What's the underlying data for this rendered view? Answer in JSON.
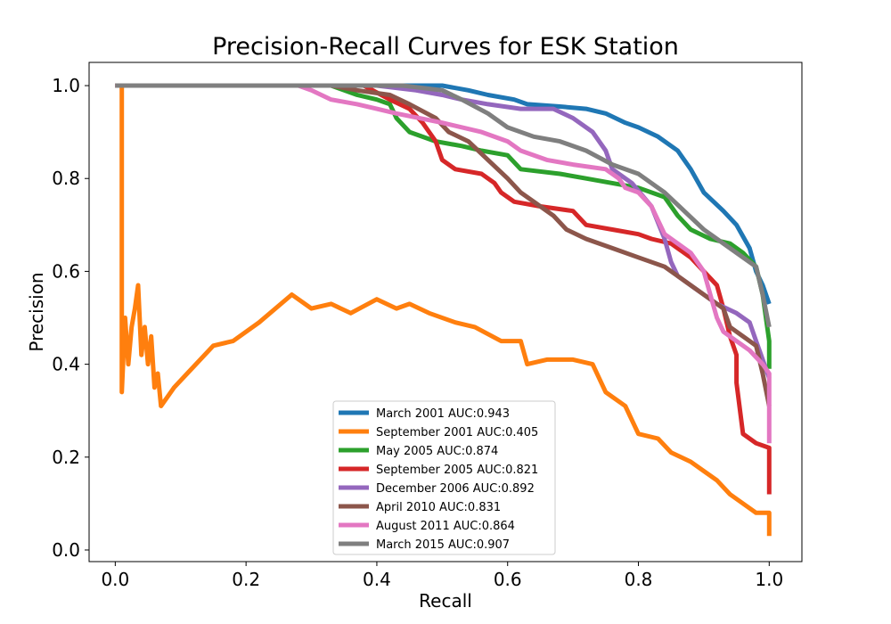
{
  "chart_data": {
    "type": "line",
    "title": "Precision-Recall Curves for ESK Station",
    "xlabel": "Recall",
    "ylabel": "Precision",
    "xlim": [
      -0.04,
      1.05
    ],
    "ylim": [
      -0.025,
      1.05
    ],
    "xticks": [
      "0.0",
      "0.2",
      "0.4",
      "0.6",
      "0.8",
      "1.0"
    ],
    "yticks": [
      "0.0",
      "0.2",
      "0.4",
      "0.6",
      "0.8",
      "1.0"
    ],
    "grid": false,
    "legend_position": "lower-center",
    "series": [
      {
        "name": "March 2001 AUC:0.943",
        "color": "#1f77b4",
        "points": [
          [
            0,
            1.0
          ],
          [
            0.5,
            1.0
          ],
          [
            0.54,
            0.99
          ],
          [
            0.57,
            0.98
          ],
          [
            0.61,
            0.97
          ],
          [
            0.63,
            0.96
          ],
          [
            0.68,
            0.955
          ],
          [
            0.72,
            0.95
          ],
          [
            0.75,
            0.94
          ],
          [
            0.78,
            0.92
          ],
          [
            0.8,
            0.91
          ],
          [
            0.83,
            0.89
          ],
          [
            0.86,
            0.86
          ],
          [
            0.88,
            0.82
          ],
          [
            0.9,
            0.77
          ],
          [
            0.93,
            0.73
          ],
          [
            0.95,
            0.7
          ],
          [
            0.97,
            0.65
          ],
          [
            0.98,
            0.6
          ],
          [
            0.99,
            0.57
          ],
          [
            1.0,
            0.53
          ]
        ]
      },
      {
        "name": "September 2001 AUC:0.405",
        "color": "#ff7f0e",
        "points": [
          [
            0,
            1.0
          ],
          [
            0.01,
            1.0
          ],
          [
            0.01,
            0.34
          ],
          [
            0.015,
            0.5
          ],
          [
            0.02,
            0.4
          ],
          [
            0.025,
            0.48
          ],
          [
            0.03,
            0.52
          ],
          [
            0.035,
            0.57
          ],
          [
            0.04,
            0.42
          ],
          [
            0.045,
            0.48
          ],
          [
            0.05,
            0.4
          ],
          [
            0.055,
            0.46
          ],
          [
            0.06,
            0.35
          ],
          [
            0.065,
            0.38
          ],
          [
            0.07,
            0.31
          ],
          [
            0.08,
            0.33
          ],
          [
            0.09,
            0.35
          ],
          [
            0.11,
            0.38
          ],
          [
            0.15,
            0.44
          ],
          [
            0.18,
            0.45
          ],
          [
            0.22,
            0.49
          ],
          [
            0.27,
            0.55
          ],
          [
            0.3,
            0.52
          ],
          [
            0.33,
            0.53
          ],
          [
            0.36,
            0.51
          ],
          [
            0.4,
            0.54
          ],
          [
            0.43,
            0.52
          ],
          [
            0.45,
            0.53
          ],
          [
            0.48,
            0.51
          ],
          [
            0.52,
            0.49
          ],
          [
            0.55,
            0.48
          ],
          [
            0.59,
            0.45
          ],
          [
            0.62,
            0.45
          ],
          [
            0.63,
            0.4
          ],
          [
            0.66,
            0.41
          ],
          [
            0.7,
            0.41
          ],
          [
            0.73,
            0.4
          ],
          [
            0.75,
            0.34
          ],
          [
            0.78,
            0.31
          ],
          [
            0.8,
            0.25
          ],
          [
            0.83,
            0.24
          ],
          [
            0.85,
            0.21
          ],
          [
            0.88,
            0.19
          ],
          [
            0.9,
            0.17
          ],
          [
            0.92,
            0.15
          ],
          [
            0.94,
            0.12
          ],
          [
            0.96,
            0.1
          ],
          [
            0.98,
            0.08
          ],
          [
            1.0,
            0.08
          ],
          [
            1.0,
            0.03
          ]
        ]
      },
      {
        "name": "May 2005 AUC:0.874",
        "color": "#2ca02c",
        "points": [
          [
            0,
            1.0
          ],
          [
            0.33,
            1.0
          ],
          [
            0.37,
            0.98
          ],
          [
            0.4,
            0.97
          ],
          [
            0.42,
            0.96
          ],
          [
            0.43,
            0.93
          ],
          [
            0.45,
            0.9
          ],
          [
            0.49,
            0.88
          ],
          [
            0.53,
            0.87
          ],
          [
            0.56,
            0.86
          ],
          [
            0.6,
            0.85
          ],
          [
            0.62,
            0.82
          ],
          [
            0.68,
            0.81
          ],
          [
            0.72,
            0.8
          ],
          [
            0.76,
            0.79
          ],
          [
            0.8,
            0.78
          ],
          [
            0.84,
            0.76
          ],
          [
            0.86,
            0.72
          ],
          [
            0.88,
            0.69
          ],
          [
            0.91,
            0.67
          ],
          [
            0.94,
            0.66
          ],
          [
            0.96,
            0.64
          ],
          [
            0.98,
            0.61
          ],
          [
            0.99,
            0.55
          ],
          [
            1.0,
            0.45
          ],
          [
            1.0,
            0.39
          ]
        ]
      },
      {
        "name": "September 2005 AUC:0.821",
        "color": "#d62728",
        "points": [
          [
            0,
            1.0
          ],
          [
            0.38,
            1.0
          ],
          [
            0.42,
            0.97
          ],
          [
            0.45,
            0.95
          ],
          [
            0.47,
            0.92
          ],
          [
            0.49,
            0.88
          ],
          [
            0.5,
            0.84
          ],
          [
            0.52,
            0.82
          ],
          [
            0.56,
            0.81
          ],
          [
            0.58,
            0.79
          ],
          [
            0.59,
            0.77
          ],
          [
            0.61,
            0.75
          ],
          [
            0.65,
            0.74
          ],
          [
            0.7,
            0.73
          ],
          [
            0.72,
            0.7
          ],
          [
            0.76,
            0.69
          ],
          [
            0.8,
            0.68
          ],
          [
            0.82,
            0.67
          ],
          [
            0.85,
            0.66
          ],
          [
            0.88,
            0.63
          ],
          [
            0.9,
            0.6
          ],
          [
            0.92,
            0.57
          ],
          [
            0.93,
            0.52
          ],
          [
            0.94,
            0.46
          ],
          [
            0.95,
            0.42
          ],
          [
            0.95,
            0.36
          ],
          [
            0.96,
            0.25
          ],
          [
            0.98,
            0.23
          ],
          [
            1.0,
            0.22
          ],
          [
            1.0,
            0.12
          ]
        ]
      },
      {
        "name": "December 2006 AUC:0.892",
        "color": "#9467bd",
        "points": [
          [
            0,
            1.0
          ],
          [
            0.4,
            1.0
          ],
          [
            0.46,
            0.99
          ],
          [
            0.5,
            0.98
          ],
          [
            0.53,
            0.97
          ],
          [
            0.57,
            0.96
          ],
          [
            0.62,
            0.95
          ],
          [
            0.67,
            0.95
          ],
          [
            0.7,
            0.93
          ],
          [
            0.73,
            0.9
          ],
          [
            0.75,
            0.86
          ],
          [
            0.76,
            0.82
          ],
          [
            0.79,
            0.79
          ],
          [
            0.82,
            0.74
          ],
          [
            0.84,
            0.67
          ],
          [
            0.85,
            0.62
          ],
          [
            0.86,
            0.59
          ],
          [
            0.89,
            0.56
          ],
          [
            0.92,
            0.53
          ],
          [
            0.95,
            0.51
          ],
          [
            0.97,
            0.49
          ],
          [
            0.98,
            0.45
          ],
          [
            0.99,
            0.41
          ],
          [
            1.0,
            0.37
          ]
        ]
      },
      {
        "name": "April 2010 AUC:0.831",
        "color": "#8c564b",
        "points": [
          [
            0,
            1.0
          ],
          [
            0.33,
            1.0
          ],
          [
            0.37,
            0.99
          ],
          [
            0.42,
            0.98
          ],
          [
            0.45,
            0.96
          ],
          [
            0.49,
            0.93
          ],
          [
            0.51,
            0.9
          ],
          [
            0.54,
            0.88
          ],
          [
            0.57,
            0.84
          ],
          [
            0.6,
            0.8
          ],
          [
            0.62,
            0.77
          ],
          [
            0.64,
            0.75
          ],
          [
            0.67,
            0.72
          ],
          [
            0.69,
            0.69
          ],
          [
            0.72,
            0.67
          ],
          [
            0.76,
            0.65
          ],
          [
            0.8,
            0.63
          ],
          [
            0.84,
            0.61
          ],
          [
            0.87,
            0.58
          ],
          [
            0.9,
            0.55
          ],
          [
            0.93,
            0.52
          ],
          [
            0.94,
            0.48
          ],
          [
            0.96,
            0.46
          ],
          [
            0.98,
            0.44
          ],
          [
            0.99,
            0.38
          ],
          [
            1.0,
            0.31
          ]
        ]
      },
      {
        "name": "August 2011 AUC:0.864",
        "color": "#e377c2",
        "points": [
          [
            0,
            1.0
          ],
          [
            0.28,
            1.0
          ],
          [
            0.3,
            0.99
          ],
          [
            0.33,
            0.97
          ],
          [
            0.37,
            0.96
          ],
          [
            0.4,
            0.95
          ],
          [
            0.43,
            0.94
          ],
          [
            0.5,
            0.92
          ],
          [
            0.56,
            0.9
          ],
          [
            0.6,
            0.88
          ],
          [
            0.62,
            0.86
          ],
          [
            0.66,
            0.84
          ],
          [
            0.7,
            0.83
          ],
          [
            0.75,
            0.82
          ],
          [
            0.77,
            0.8
          ],
          [
            0.78,
            0.78
          ],
          [
            0.8,
            0.77
          ],
          [
            0.82,
            0.74
          ],
          [
            0.83,
            0.71
          ],
          [
            0.84,
            0.68
          ],
          [
            0.86,
            0.66
          ],
          [
            0.88,
            0.64
          ],
          [
            0.9,
            0.6
          ],
          [
            0.91,
            0.55
          ],
          [
            0.92,
            0.5
          ],
          [
            0.93,
            0.47
          ],
          [
            0.95,
            0.45
          ],
          [
            0.97,
            0.43
          ],
          [
            0.99,
            0.4
          ],
          [
            1.0,
            0.38
          ],
          [
            1.0,
            0.23
          ]
        ]
      },
      {
        "name": "March 2015 AUC:0.907",
        "color": "#7f7f7f",
        "points": [
          [
            0,
            1.0
          ],
          [
            0.44,
            1.0
          ],
          [
            0.5,
            0.99
          ],
          [
            0.53,
            0.97
          ],
          [
            0.57,
            0.94
          ],
          [
            0.6,
            0.91
          ],
          [
            0.64,
            0.89
          ],
          [
            0.68,
            0.88
          ],
          [
            0.72,
            0.86
          ],
          [
            0.76,
            0.83
          ],
          [
            0.8,
            0.81
          ],
          [
            0.84,
            0.77
          ],
          [
            0.87,
            0.73
          ],
          [
            0.9,
            0.69
          ],
          [
            0.93,
            0.66
          ],
          [
            0.96,
            0.63
          ],
          [
            0.98,
            0.61
          ],
          [
            0.99,
            0.55
          ],
          [
            1.0,
            0.48
          ]
        ]
      }
    ]
  }
}
